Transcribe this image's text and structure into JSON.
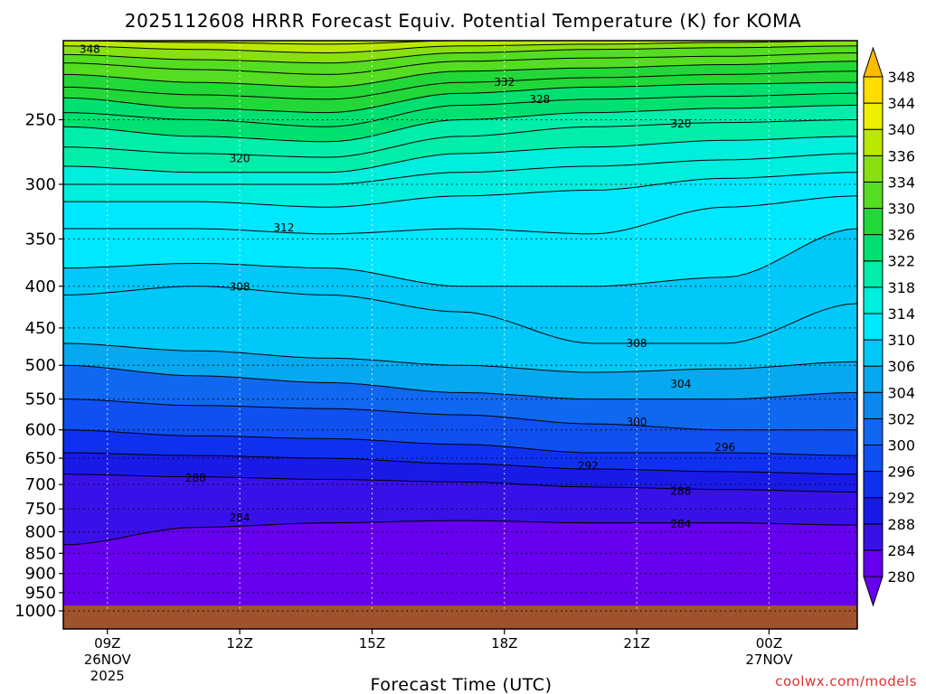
{
  "chart_data": {
    "type": "heatmap",
    "title": "2025112608 HRRR Forecast Equiv. Potential Temperature (K) for KOMA",
    "xlabel": "Forecast Time (UTC)",
    "credit": "coolwx.com/models",
    "x_range_hours": [
      8,
      26
    ],
    "x_ticks": [
      {
        "hour": 9,
        "label": "09Z",
        "date_line1": "26NOV",
        "date_line2": "2025"
      },
      {
        "hour": 12,
        "label": "12Z"
      },
      {
        "hour": 15,
        "label": "15Z"
      },
      {
        "hour": 18,
        "label": "18Z"
      },
      {
        "hour": 21,
        "label": "21Z"
      },
      {
        "hour": 24,
        "label": "00Z",
        "date_line1": "27NOV"
      }
    ],
    "y_scale": "log",
    "y_range_hpa": [
      1000,
      200
    ],
    "y_ticks": [
      250,
      300,
      350,
      400,
      450,
      500,
      550,
      600,
      650,
      700,
      750,
      800,
      850,
      900,
      950,
      1000
    ],
    "surface_pressure_hpa": 985,
    "colorbar": {
      "labels": [
        "280",
        "284",
        "288",
        "292",
        "296",
        "300",
        "302",
        "304",
        "306",
        "310",
        "314",
        "318",
        "322",
        "326",
        "330",
        "334",
        "336",
        "340",
        "344",
        "348"
      ],
      "colors": [
        "#6600ee",
        "#3a10e8",
        "#1a1ae6",
        "#1030f0",
        "#1050f0",
        "#1068f0",
        "#0a88f0",
        "#06a8f0",
        "#00c8f8",
        "#00e8ff",
        "#00eedd",
        "#00eeaa",
        "#00e070",
        "#22d838",
        "#55dd22",
        "#88e010",
        "#bbe800",
        "#eeee00",
        "#ffdd00",
        "#ffbb00"
      ]
    },
    "contour_intervals": [
      {
        "hour": 8,
        "levels": [
          [
            280,
            1000
          ],
          [
            284,
            830
          ],
          [
            288,
            680
          ],
          [
            292,
            640
          ],
          [
            296,
            600
          ],
          [
            300,
            550
          ],
          [
            304,
            500
          ],
          [
            306,
            470
          ],
          [
            308,
            410
          ],
          [
            310,
            380
          ],
          [
            312,
            340
          ],
          [
            314,
            315
          ],
          [
            316,
            300
          ],
          [
            318,
            285
          ],
          [
            320,
            270
          ],
          [
            322,
            255
          ],
          [
            324,
            245
          ],
          [
            326,
            235
          ],
          [
            328,
            228
          ],
          [
            330,
            220
          ],
          [
            332,
            213
          ],
          [
            334,
            208
          ],
          [
            336,
            203
          ],
          [
            338,
            200
          ]
        ]
      },
      {
        "hour": 11,
        "levels": [
          [
            280,
            1000
          ],
          [
            284,
            790
          ],
          [
            288,
            685
          ],
          [
            292,
            645
          ],
          [
            296,
            610
          ],
          [
            300,
            560
          ],
          [
            304,
            515
          ],
          [
            306,
            480
          ],
          [
            308,
            400
          ],
          [
            310,
            375
          ],
          [
            312,
            340
          ],
          [
            314,
            315
          ],
          [
            316,
            300
          ],
          [
            318,
            290
          ],
          [
            320,
            275
          ],
          [
            322,
            262
          ],
          [
            324,
            250
          ],
          [
            326,
            242
          ],
          [
            328,
            233
          ],
          [
            330,
            225
          ],
          [
            332,
            217
          ],
          [
            334,
            211
          ],
          [
            336,
            205
          ],
          [
            338,
            201
          ]
        ]
      },
      {
        "hour": 14,
        "levels": [
          [
            280,
            1000
          ],
          [
            284,
            780
          ],
          [
            288,
            690
          ],
          [
            292,
            650
          ],
          [
            296,
            615
          ],
          [
            300,
            565
          ],
          [
            304,
            525
          ],
          [
            306,
            490
          ],
          [
            308,
            410
          ],
          [
            310,
            380
          ],
          [
            312,
            345
          ],
          [
            314,
            320
          ],
          [
            316,
            300
          ],
          [
            318,
            290
          ],
          [
            320,
            278
          ],
          [
            322,
            266
          ],
          [
            324,
            255
          ],
          [
            326,
            245
          ],
          [
            328,
            236
          ],
          [
            330,
            228
          ],
          [
            332,
            220
          ],
          [
            334,
            213
          ],
          [
            336,
            207
          ],
          [
            338,
            202
          ]
        ]
      },
      {
        "hour": 17,
        "levels": [
          [
            280,
            1000
          ],
          [
            284,
            775
          ],
          [
            288,
            695
          ],
          [
            292,
            660
          ],
          [
            296,
            625
          ],
          [
            300,
            575
          ],
          [
            304,
            540
          ],
          [
            306,
            500
          ],
          [
            308,
            430
          ],
          [
            310,
            400
          ],
          [
            312,
            340
          ],
          [
            314,
            310
          ],
          [
            316,
            290
          ],
          [
            318,
            275
          ],
          [
            320,
            262
          ],
          [
            322,
            250
          ],
          [
            324,
            240
          ],
          [
            326,
            232
          ],
          [
            328,
            225
          ],
          [
            330,
            218
          ],
          [
            332,
            212
          ],
          [
            334,
            207
          ],
          [
            336,
            203
          ],
          [
            338,
            200
          ]
        ]
      },
      {
        "hour": 20,
        "levels": [
          [
            280,
            1000
          ],
          [
            284,
            780
          ],
          [
            288,
            705
          ],
          [
            292,
            670
          ],
          [
            296,
            640
          ],
          [
            300,
            590
          ],
          [
            304,
            550
          ],
          [
            306,
            510
          ],
          [
            308,
            470
          ],
          [
            310,
            400
          ],
          [
            312,
            345
          ],
          [
            314,
            305
          ],
          [
            316,
            285
          ],
          [
            318,
            270
          ],
          [
            320,
            255
          ],
          [
            322,
            245
          ],
          [
            324,
            236
          ],
          [
            326,
            228
          ],
          [
            328,
            222
          ],
          [
            330,
            216
          ],
          [
            332,
            210
          ],
          [
            334,
            205
          ],
          [
            336,
            202
          ],
          [
            338,
            200
          ]
        ]
      },
      {
        "hour": 23,
        "levels": [
          [
            280,
            1000
          ],
          [
            284,
            780
          ],
          [
            288,
            710
          ],
          [
            292,
            675
          ],
          [
            296,
            640
          ],
          [
            300,
            600
          ],
          [
            304,
            550
          ],
          [
            306,
            505
          ],
          [
            308,
            470
          ],
          [
            310,
            390
          ],
          [
            312,
            320
          ],
          [
            314,
            295
          ],
          [
            316,
            280
          ],
          [
            318,
            265
          ],
          [
            320,
            252
          ],
          [
            322,
            242
          ],
          [
            324,
            234
          ],
          [
            326,
            226
          ],
          [
            328,
            220
          ],
          [
            330,
            214
          ],
          [
            332,
            209
          ],
          [
            334,
            204
          ],
          [
            336,
            201
          ],
          [
            338,
            200
          ]
        ]
      },
      {
        "hour": 26,
        "levels": [
          [
            280,
            1000
          ],
          [
            284,
            785
          ],
          [
            288,
            715
          ],
          [
            292,
            680
          ],
          [
            296,
            645
          ],
          [
            300,
            600
          ],
          [
            304,
            540
          ],
          [
            306,
            495
          ],
          [
            308,
            420
          ],
          [
            310,
            340
          ],
          [
            312,
            310
          ],
          [
            314,
            290
          ],
          [
            316,
            275
          ],
          [
            318,
            262
          ],
          [
            320,
            250
          ],
          [
            322,
            240
          ],
          [
            324,
            232
          ],
          [
            326,
            225
          ],
          [
            328,
            218
          ],
          [
            330,
            212
          ],
          [
            332,
            207
          ],
          [
            334,
            203
          ],
          [
            336,
            200
          ],
          [
            338,
            200
          ]
        ]
      }
    ],
    "contour_labels": [
      {
        "text": "348",
        "hour": 8.6,
        "pressure": 205
      },
      {
        "text": "332",
        "hour": 18.0,
        "pressure": 225
      },
      {
        "text": "328",
        "hour": 18.8,
        "pressure": 236
      },
      {
        "text": "320",
        "hour": 22.0,
        "pressure": 253
      },
      {
        "text": "320",
        "hour": 12.0,
        "pressure": 279
      },
      {
        "text": "312",
        "hour": 13.0,
        "pressure": 339
      },
      {
        "text": "308",
        "hour": 12.0,
        "pressure": 401
      },
      {
        "text": "308",
        "hour": 21.0,
        "pressure": 470
      },
      {
        "text": "304",
        "hour": 22.0,
        "pressure": 527
      },
      {
        "text": "300",
        "hour": 21.0,
        "pressure": 587
      },
      {
        "text": "296",
        "hour": 23.0,
        "pressure": 630
      },
      {
        "text": "292",
        "hour": 19.9,
        "pressure": 664
      },
      {
        "text": "288",
        "hour": 11.0,
        "pressure": 687
      },
      {
        "text": "288",
        "hour": 22.0,
        "pressure": 713
      },
      {
        "text": "284",
        "hour": 12.0,
        "pressure": 769
      },
      {
        "text": "284",
        "hour": 22.0,
        "pressure": 783
      }
    ]
  }
}
